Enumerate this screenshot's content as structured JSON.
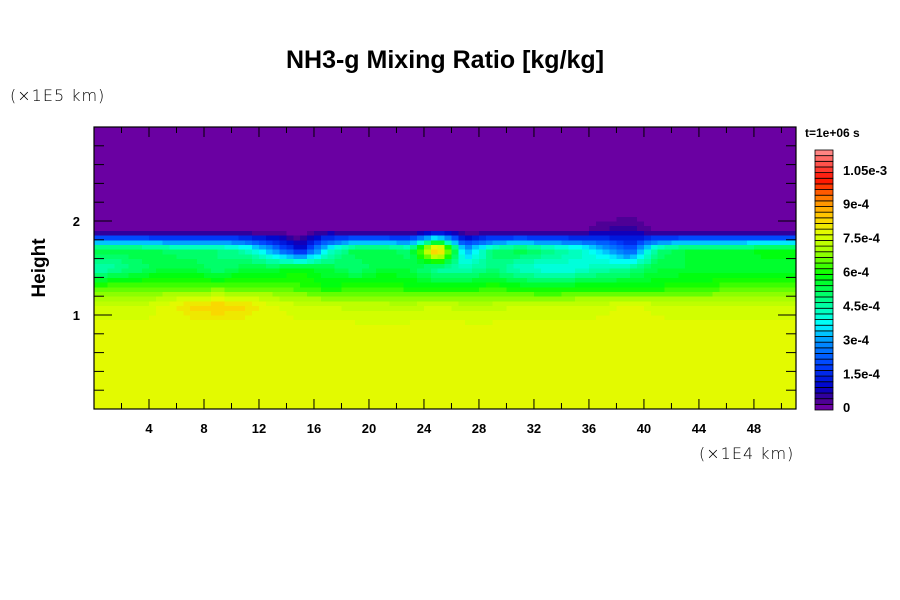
{
  "chart_data": {
    "type": "heatmap",
    "title": "NH3-g Mixing Ratio [kg/kg]",
    "ylabel": "Height",
    "yunit": "(×1E5 km)",
    "xunit": "(×1E4 km)",
    "annotation": "t=1e+06 s",
    "xlim": [
      0,
      51.06
    ],
    "ylim": [
      0,
      3
    ],
    "xticks": [
      4,
      8,
      12,
      16,
      20,
      24,
      28,
      32,
      36,
      40,
      44,
      48
    ],
    "yticks": [
      1,
      2
    ],
    "value_scale": 0.0001,
    "grid_x": [
      1,
      3,
      5,
      7,
      9,
      11,
      13,
      15,
      17,
      19,
      21,
      23,
      25,
      27,
      29,
      31,
      33,
      35,
      37,
      39,
      41,
      43,
      45,
      47,
      49,
      51
    ],
    "grid_y": [
      2.9,
      2.7,
      2.5,
      2.3,
      2.1,
      1.9,
      1.7,
      1.5,
      1.3,
      1.1,
      0.9,
      0.7,
      0.5,
      0.3,
      0.1
    ],
    "values": [
      [
        0,
        0,
        0,
        0,
        0,
        0,
        0,
        0,
        0,
        0,
        0,
        0,
        0,
        0,
        0,
        0,
        0,
        0,
        0,
        0,
        0,
        0,
        0,
        0,
        0,
        0
      ],
      [
        0,
        0,
        0,
        0,
        0,
        0,
        0,
        0,
        0,
        0,
        0,
        0,
        0,
        0,
        0,
        0,
        0,
        0,
        0,
        0,
        0,
        0,
        0,
        0,
        0,
        0
      ],
      [
        0,
        0,
        0,
        0,
        0,
        0,
        0,
        0,
        0,
        0,
        0,
        0,
        0,
        0,
        0,
        0,
        0,
        0,
        0,
        0,
        0,
        0,
        0,
        0,
        0,
        0
      ],
      [
        0,
        0,
        0,
        0,
        0,
        0,
        0,
        0,
        0,
        0,
        0,
        0,
        0,
        0,
        0,
        0,
        0,
        0,
        0,
        0,
        0,
        0,
        0,
        0,
        0,
        0
      ],
      [
        0,
        0,
        0,
        0,
        0,
        0,
        0,
        0,
        0,
        0,
        0,
        0,
        0,
        0,
        0,
        0,
        0,
        0,
        0,
        0,
        0,
        0,
        0,
        0,
        0,
        0
      ],
      [
        0,
        0,
        0,
        0,
        0,
        0,
        0,
        0,
        0.3,
        0,
        0,
        0,
        0.3,
        0,
        0,
        0,
        0,
        0,
        0.5,
        0.8,
        0,
        0,
        0,
        0,
        0,
        0
      ],
      [
        5.5,
        5.5,
        5.2,
        5.0,
        5.0,
        4.5,
        3.0,
        1.0,
        4.0,
        5.5,
        5.5,
        5.0,
        9.5,
        3.0,
        5.0,
        5.5,
        5.0,
        4.5,
        3.5,
        2.0,
        5.0,
        5.5,
        5.5,
        5.5,
        6.0,
        6.0
      ],
      [
        4.5,
        5.0,
        5.5,
        5.5,
        5.0,
        5.5,
        5.5,
        6.0,
        5.5,
        5.0,
        5.5,
        5.5,
        4.5,
        4.5,
        5.0,
        4.2,
        4.0,
        4.0,
        4.5,
        4.8,
        5.5,
        5.5,
        5.5,
        5.5,
        5.5,
        5.5
      ],
      [
        6.5,
        6.5,
        6.5,
        6.5,
        6.5,
        6.5,
        6.5,
        6.3,
        6.0,
        6.2,
        6.3,
        6.0,
        6.0,
        6.0,
        6.2,
        6.0,
        5.8,
        6.0,
        6.0,
        6.0,
        6.0,
        6.2,
        6.3,
        6.5,
        6.5,
        6.5
      ],
      [
        7.5,
        7.5,
        7.8,
        8.3,
        8.6,
        8.3,
        7.8,
        7.6,
        7.5,
        7.4,
        7.4,
        7.4,
        7.5,
        7.4,
        7.4,
        7.5,
        7.5,
        7.6,
        7.7,
        7.8,
        7.7,
        7.6,
        7.5,
        7.5,
        7.5,
        7.5
      ],
      [
        7.8,
        7.8,
        7.8,
        7.8,
        7.8,
        7.8,
        7.8,
        7.8,
        7.8,
        7.8,
        7.8,
        7.8,
        7.8,
        7.8,
        7.8,
        7.8,
        7.8,
        7.8,
        7.8,
        7.8,
        7.8,
        7.8,
        7.8,
        7.8,
        7.8,
        7.8
      ],
      [
        7.8,
        7.8,
        7.8,
        7.8,
        7.8,
        7.8,
        7.8,
        7.8,
        7.8,
        7.8,
        7.8,
        7.8,
        7.8,
        7.8,
        7.8,
        7.8,
        7.8,
        7.8,
        7.8,
        7.8,
        7.8,
        7.8,
        7.8,
        7.8,
        7.8,
        7.8
      ],
      [
        7.8,
        7.8,
        7.8,
        7.8,
        7.8,
        7.8,
        7.8,
        7.8,
        7.8,
        7.8,
        7.8,
        7.8,
        7.8,
        7.8,
        7.8,
        7.8,
        7.8,
        7.8,
        7.8,
        7.8,
        7.8,
        7.8,
        7.8,
        7.8,
        7.8,
        7.8
      ],
      [
        7.8,
        7.8,
        7.8,
        7.8,
        7.8,
        7.8,
        7.8,
        7.8,
        7.8,
        7.8,
        7.8,
        7.8,
        7.8,
        7.8,
        7.8,
        7.8,
        7.8,
        7.8,
        7.8,
        7.8,
        7.8,
        7.8,
        7.8,
        7.8,
        7.8,
        7.8
      ],
      [
        7.8,
        7.8,
        7.8,
        7.8,
        7.8,
        7.8,
        7.8,
        7.8,
        7.8,
        7.8,
        7.8,
        7.8,
        7.8,
        7.8,
        7.8,
        7.8,
        7.8,
        7.8,
        7.8,
        7.8,
        7.8,
        7.8,
        7.8,
        7.8,
        7.8,
        7.8
      ]
    ],
    "colorbar": {
      "min": 0,
      "max": 0.00115,
      "step": 2.5e-05,
      "ticks": [
        0,
        0.00015,
        0.0003,
        0.00045,
        0.0006,
        0.00075,
        0.0009,
        0.00105
      ],
      "tick_labels": [
        "0",
        "1.5e-4",
        "3e-4",
        "4.5e-4",
        "6e-4",
        "7.5e-4",
        "9e-4",
        "1.05e-3"
      ]
    },
    "colormap": [
      [
        0,
        "#7800a8"
      ],
      [
        0.5,
        "#400090"
      ],
      [
        1.0,
        "#0000c8"
      ],
      [
        2.0,
        "#0040ff"
      ],
      [
        3.0,
        "#0090ff"
      ],
      [
        3.8,
        "#00ffff"
      ],
      [
        4.8,
        "#00ff90"
      ],
      [
        6.0,
        "#00ff00"
      ],
      [
        7.0,
        "#a0ff00"
      ],
      [
        7.8,
        "#e0ff00"
      ],
      [
        8.5,
        "#ffd000"
      ],
      [
        9.2,
        "#ff9000"
      ],
      [
        10.2,
        "#ff1000"
      ],
      [
        11.5,
        "#ff9090"
      ]
    ]
  }
}
